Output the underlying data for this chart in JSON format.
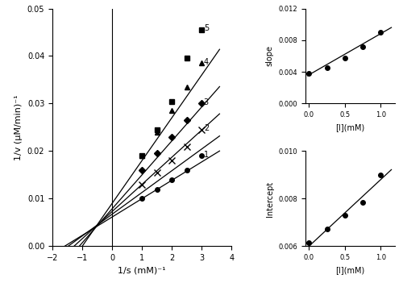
{
  "main_xlim": [
    -2.0,
    4.0
  ],
  "main_ylim": [
    0.0,
    0.05
  ],
  "main_xlabel": "1/s (mM)⁻¹",
  "main_ylabel": "1/v (μM/min)⁻¹",
  "main_xticks": [
    -2.0,
    -1.0,
    0.0,
    1.0,
    2.0,
    3.0,
    4.0
  ],
  "main_yticks": [
    0.0,
    0.01,
    0.02,
    0.03,
    0.04,
    0.05
  ],
  "curves": [
    {
      "label": "1",
      "marker": "o",
      "x_data": [
        1.0,
        1.5,
        2.0,
        2.5,
        3.0
      ],
      "y_data": [
        0.01,
        0.012,
        0.014,
        0.016,
        0.019
      ],
      "slope": 0.00386,
      "intercept": 0.00614
    },
    {
      "label": "2",
      "marker": "x",
      "x_data": [
        1.0,
        1.5,
        2.0,
        2.5,
        3.0
      ],
      "y_data": [
        0.013,
        0.0155,
        0.018,
        0.021,
        0.0245
      ],
      "slope": 0.00457,
      "intercept": 0.00673
    },
    {
      "label": "3",
      "marker": "D",
      "x_data": [
        1.0,
        1.5,
        2.0,
        2.5,
        3.0
      ],
      "y_data": [
        0.016,
        0.0195,
        0.023,
        0.0265,
        0.03
      ],
      "slope": 0.00571,
      "intercept": 0.00729
    },
    {
      "label": "4",
      "marker": "^",
      "x_data": [
        1.0,
        1.5,
        2.0,
        2.5,
        3.0
      ],
      "y_data": [
        0.019,
        0.024,
        0.0285,
        0.0335,
        0.0385
      ],
      "slope": 0.00714,
      "intercept": 0.00786
    },
    {
      "label": "5",
      "marker": "s",
      "x_data": [
        1.0,
        1.5,
        2.0,
        2.5,
        3.0
      ],
      "y_data": [
        0.019,
        0.0245,
        0.0305,
        0.0395,
        0.0455
      ],
      "slope": 0.009,
      "intercept": 0.009
    }
  ],
  "inset_slope": {
    "xlim": [
      -0.05,
      1.2
    ],
    "ylim": [
      0.0,
      0.012
    ],
    "xlabel": "[I](mM)",
    "ylabel": "slope",
    "x_data": [
      0.0,
      0.25,
      0.5,
      0.75,
      1.0
    ],
    "y_data": [
      0.00386,
      0.00457,
      0.00571,
      0.00714,
      0.009
    ],
    "fit_slope": 0.00519,
    "fit_intercept": 0.00363,
    "xticks": [
      0.0,
      0.5,
      1.0
    ],
    "yticks": [
      0.0,
      0.004,
      0.008,
      0.012
    ]
  },
  "inset_intercept": {
    "xlim": [
      -0.05,
      1.2
    ],
    "ylim": [
      0.006,
      0.01
    ],
    "xlabel": "[I](mM)",
    "ylabel": "Intercept",
    "x_data": [
      0.0,
      0.25,
      0.5,
      0.75,
      1.0
    ],
    "y_data": [
      0.00614,
      0.00673,
      0.00729,
      0.00786,
      0.009
    ],
    "fit_slope": 0.0028,
    "fit_intercept": 0.006,
    "xticks": [
      0.0,
      0.5,
      1.0
    ],
    "yticks": [
      0.006,
      0.008,
      0.01
    ]
  }
}
